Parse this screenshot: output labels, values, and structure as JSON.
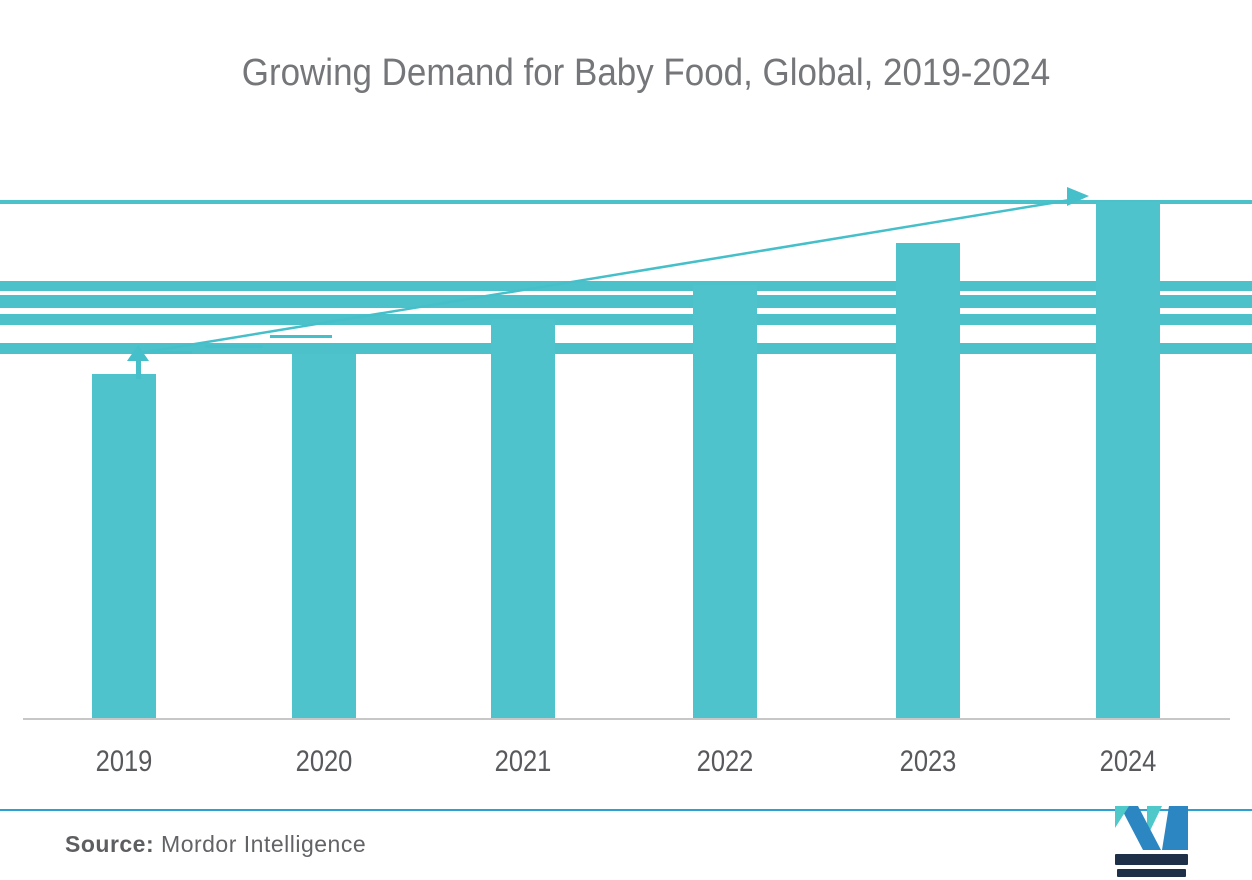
{
  "title": "Growing Demand for Baby Food, Global, 2019-2024",
  "chart_data": {
    "type": "bar",
    "title": "Growing Demand for Baby Food, Global, 2019-2024",
    "categories": [
      "2019",
      "2020",
      "2021",
      "2022",
      "2023",
      "2024"
    ],
    "values": [
      100,
      106,
      116,
      126,
      138,
      150
    ],
    "values_note": "no value axis shown; bar heights estimated as relative demand index (2019 = 100)",
    "xlabel": "",
    "ylabel": "",
    "grid": "decorative horizontal teal bands (no labeled gridlines)",
    "legend": "none",
    "trend_annotation": "teal arrow rising from 2019 bar top to 2024 bar top, arrowhead at right end and small upward arrow at start",
    "bar_color": "#4fc3cb"
  },
  "source": {
    "label": "Source:",
    "name": "Mordor Intelligence"
  },
  "icons": {
    "logo": "mordor-intelligence-m-logo"
  },
  "colors": {
    "bar_teal": "#4fc3cb",
    "band_teal": "#4cc1ca",
    "trend_teal": "#45bfc9",
    "title_gray": "#747679",
    "year_label_gray": "#58595c",
    "source_gray": "#626366",
    "axis_gray": "#c7c7c7",
    "footer_line_blue": "#2ca0d3",
    "logo_blue": "#2b86c2",
    "logo_teal": "#4fc8c9",
    "logo_navy": "#1e3048"
  }
}
